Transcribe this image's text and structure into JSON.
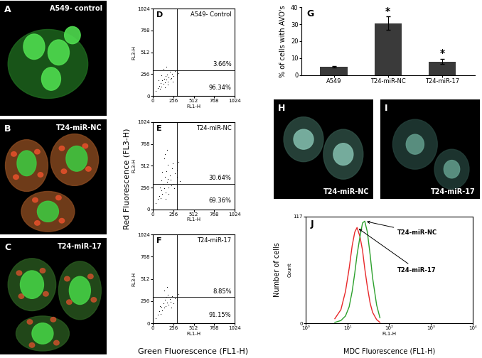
{
  "shared_labels": {
    "y": "Red Fluorescence (FL3-H)",
    "x": "Green Fluorescence (FL1-H)"
  },
  "chart_data": [
    {
      "type": "image",
      "panel": "A",
      "label": "A549- control"
    },
    {
      "type": "image",
      "panel": "B",
      "label": "T24-miR-NC"
    },
    {
      "type": "image",
      "panel": "C",
      "label": "T24-miR-17"
    },
    {
      "type": "scatter",
      "panel": "D",
      "title": "A549- Control",
      "x_label": "FL1-H",
      "y_label": "FL3-H",
      "x": [
        40,
        60,
        80,
        90,
        100,
        110,
        120,
        130,
        140,
        150,
        160,
        170,
        180,
        190,
        200,
        210,
        220,
        240,
        260,
        280,
        300,
        320,
        70,
        130,
        170,
        230,
        150,
        110,
        190,
        250
      ],
      "y": [
        60,
        90,
        120,
        80,
        150,
        110,
        180,
        140,
        200,
        160,
        230,
        190,
        250,
        170,
        220,
        280,
        200,
        260,
        230,
        290,
        250,
        270,
        180,
        320,
        340,
        210,
        100,
        240,
        130,
        170
      ],
      "color": "#000000",
      "xlim": [
        0,
        1024
      ],
      "ylim": [
        0,
        1024
      ],
      "xticks": [
        0,
        256,
        512,
        768,
        1024
      ],
      "yticks": [
        0,
        256,
        512,
        768,
        1024
      ],
      "gate_x": 300,
      "gate_y": 300,
      "quadrant_labels": {
        "upper_right": "3.66%",
        "lower_right": "96.34%"
      }
    },
    {
      "type": "scatter",
      "panel": "E",
      "title": "T24-miR-NC",
      "x_label": "FL1-H",
      "y_label": "FL3-H",
      "x": [
        40,
        60,
        80,
        100,
        110,
        120,
        130,
        140,
        150,
        160,
        170,
        180,
        190,
        200,
        210,
        220,
        240,
        260,
        280,
        300,
        320,
        340,
        90,
        140,
        180,
        230,
        160,
        120,
        200,
        270,
        150,
        250,
        110,
        190,
        300
      ],
      "y": [
        70,
        120,
        160,
        130,
        220,
        180,
        300,
        250,
        380,
        200,
        450,
        320,
        520,
        260,
        400,
        350,
        480,
        300,
        420,
        380,
        560,
        330,
        260,
        600,
        700,
        280,
        120,
        440,
        180,
        250,
        650,
        540,
        340,
        360,
        460
      ],
      "color": "#000000",
      "xlim": [
        0,
        1024
      ],
      "ylim": [
        0,
        1024
      ],
      "xticks": [
        0,
        256,
        512,
        768,
        1024
      ],
      "yticks": [
        0,
        256,
        512,
        768,
        1024
      ],
      "gate_x": 300,
      "gate_y": 300,
      "quadrant_labels": {
        "upper_right": "30.64%",
        "lower_right": "69.36%"
      }
    },
    {
      "type": "scatter",
      "panel": "F",
      "title": "T24-miR-17",
      "x_label": "FL1-H",
      "y_label": "FL3-H",
      "x": [
        40,
        60,
        80,
        100,
        110,
        120,
        130,
        140,
        150,
        160,
        170,
        180,
        190,
        200,
        210,
        220,
        240,
        260,
        280,
        300,
        320,
        90,
        140,
        180,
        230
      ],
      "y": [
        60,
        100,
        140,
        110,
        190,
        150,
        230,
        180,
        270,
        200,
        300,
        240,
        330,
        210,
        280,
        250,
        310,
        230,
        290,
        270,
        340,
        200,
        380,
        420,
        180
      ],
      "color": "#000000",
      "xlim": [
        0,
        1024
      ],
      "ylim": [
        0,
        1024
      ],
      "xticks": [
        0,
        256,
        512,
        768,
        1024
      ],
      "yticks": [
        0,
        256,
        512,
        768,
        1024
      ],
      "gate_x": 300,
      "gate_y": 300,
      "quadrant_labels": {
        "upper_right": "8.85%",
        "lower_right": "91.15%"
      }
    },
    {
      "type": "bar",
      "panel": "G",
      "y_label": "% of cells with AVO's",
      "categories": [
        "A549",
        "T24-miR-NC",
        "T24-miR-17"
      ],
      "values": [
        5,
        30.5,
        8
      ],
      "errors": [
        0.5,
        4,
        1.5
      ],
      "significance": [
        null,
        "*",
        "*"
      ],
      "color": "#3a3a3a",
      "ylim": [
        0,
        40
      ],
      "yticks": [
        0,
        10,
        20,
        30,
        40
      ]
    },
    {
      "type": "image",
      "panel": "H",
      "label": "T24-miR-NC"
    },
    {
      "type": "image",
      "panel": "I",
      "label": "T24-miR-17"
    },
    {
      "type": "line",
      "panel": "J",
      "x_label": "FL1-H",
      "y_label": "Count",
      "outer_x_label": "MDC Fluorescence (FL1-H)",
      "outer_y_label": "Number of cells",
      "log": "x",
      "x": [
        5,
        7,
        9,
        11,
        13,
        15,
        17,
        20,
        23,
        26,
        30,
        35,
        40,
        50,
        60
      ],
      "series": [
        {
          "name": "T24-miR-17",
          "color": "#e8282a",
          "values": [
            5,
            15,
            35,
            60,
            85,
            100,
            105,
            95,
            80,
            60,
            40,
            22,
            12,
            4,
            1
          ]
        },
        {
          "name": "T24-miR-NC",
          "color": "#2ca02c",
          "values": [
            1,
            3,
            8,
            18,
            35,
            55,
            75,
            95,
            110,
            112,
            100,
            75,
            50,
            20,
            6
          ]
        }
      ],
      "xlim": [
        1,
        10000
      ],
      "xticks": [
        {
          "value": 1,
          "label": "10⁰"
        },
        {
          "value": 10,
          "label": "10¹"
        },
        {
          "value": 100,
          "label": "10²"
        },
        {
          "value": 1000,
          "label": "10³"
        },
        {
          "value": 10000,
          "label": "10⁴"
        }
      ],
      "ylim": [
        0,
        117
      ],
      "yticks": [
        0,
        117
      ]
    }
  ]
}
